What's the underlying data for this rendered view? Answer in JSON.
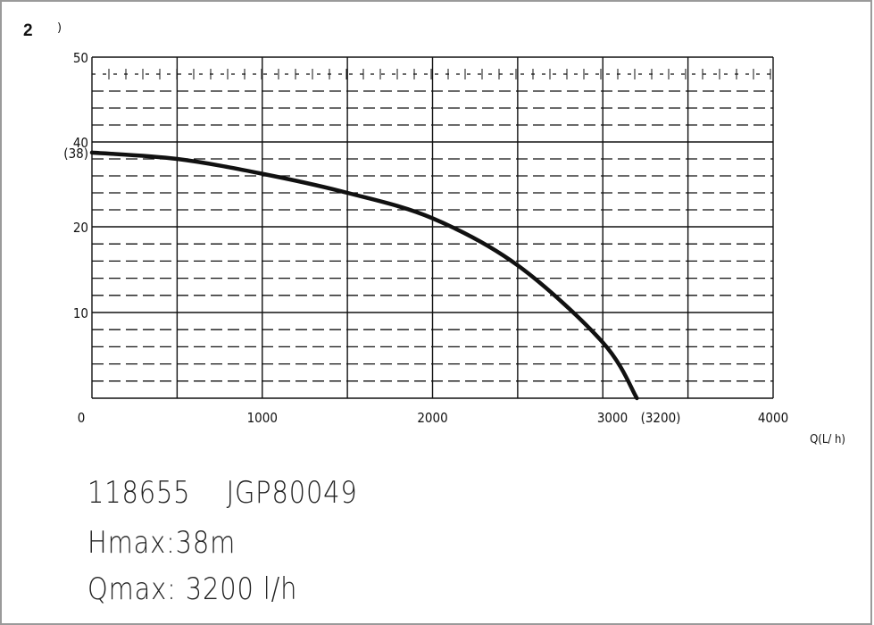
{
  "figure": {
    "number": "2",
    "mark": ")"
  },
  "chart_data": {
    "type": "line",
    "xlabel": "Q(L/ h)",
    "ylabel": "",
    "xlim": [
      0,
      4000
    ],
    "ylim": [
      0,
      50
    ],
    "y_ticks": [
      {
        "value": 50,
        "label": "50"
      },
      {
        "value": 40,
        "label": "40"
      },
      {
        "value": 37.5,
        "label": "(38)"
      },
      {
        "value": 20,
        "label": "20"
      },
      {
        "value": 10,
        "label": "10"
      }
    ],
    "x_ticks": [
      {
        "value": 0,
        "label": "0"
      },
      {
        "value": 1000,
        "label": "1000"
      },
      {
        "value": 2000,
        "label": "2000"
      },
      {
        "value": 3000,
        "label": "3000"
      },
      {
        "value": 3200,
        "label": "(3200)"
      },
      {
        "value": 4000,
        "label": "4000"
      }
    ],
    "grid": true,
    "series": [
      {
        "values": [
          [
            0,
            37.5
          ],
          [
            500,
            36
          ],
          [
            1000,
            32.5
          ],
          [
            1500,
            28
          ],
          [
            2000,
            22
          ],
          [
            2500,
            15.5
          ],
          [
            3000,
            6.5
          ],
          [
            3200,
            0
          ]
        ]
      }
    ]
  },
  "specs": {
    "line1": "118655    JGP80049",
    "line2": "Hmax:38m",
    "line3": "Qmax: 3200 l/h"
  }
}
